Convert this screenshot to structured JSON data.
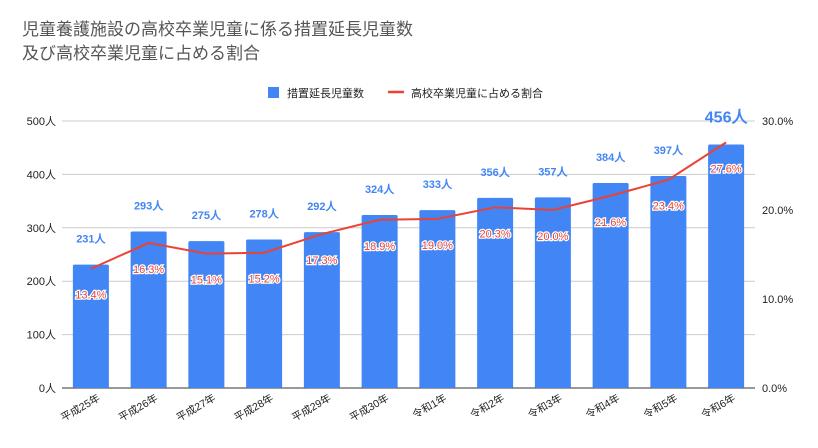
{
  "chart_data": {
    "type": "bar",
    "title_lines": [
      "児童養護施設の高校卒業児童に係る措置延長児童数",
      "及び高校卒業児童に占める割合"
    ],
    "categories": [
      "平成25年",
      "平成26年",
      "平成27年",
      "平成28年",
      "平成29年",
      "平成30年",
      "令和1年",
      "令和2年",
      "令和3年",
      "令和4年",
      "令和5年",
      "令和6年"
    ],
    "series": [
      {
        "name": "措置延長児童数",
        "type": "bar",
        "axis": "left",
        "color": "#4285f4",
        "values": [
          231,
          293,
          275,
          278,
          292,
          324,
          333,
          356,
          357,
          384,
          397,
          456
        ],
        "labels": [
          "231人",
          "293人",
          "275人",
          "278人",
          "292人",
          "324人",
          "333人",
          "356人",
          "357人",
          "384人",
          "397人",
          "456人"
        ]
      },
      {
        "name": "高校卒業児童に占める割合",
        "type": "line",
        "axis": "right",
        "color": "#ea4335",
        "values": [
          13.4,
          16.3,
          15.1,
          15.2,
          17.3,
          18.9,
          19.0,
          20.3,
          20.0,
          21.6,
          23.4,
          27.6
        ],
        "labels": [
          "13.4%",
          "16.3%",
          "15.1%",
          "15.2%",
          "17.3%",
          "18.9%",
          "19.0%",
          "20.3%",
          "20.0%",
          "21.6%",
          "23.4%",
          "27.6%"
        ]
      }
    ],
    "left_axis": {
      "ylim": [
        0,
        500
      ],
      "ticks": [
        0,
        100,
        200,
        300,
        400,
        500
      ],
      "tick_labels": [
        "0人",
        "100人",
        "200人",
        "300人",
        "400人",
        "500人"
      ]
    },
    "right_axis": {
      "ylim": [
        0,
        30
      ],
      "ticks": [
        0,
        10,
        20,
        30
      ],
      "tick_labels": [
        "0.0%",
        "10.0%",
        "20.0%",
        "30.0%"
      ]
    },
    "legend_position": "top-center",
    "grid": true
  }
}
